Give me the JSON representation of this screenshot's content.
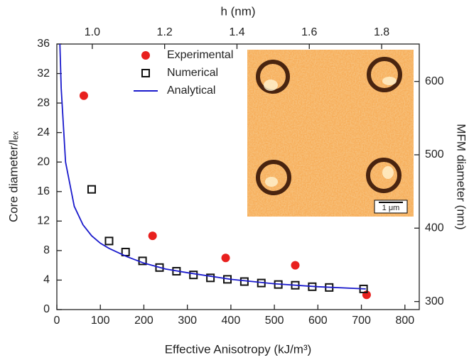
{
  "chart_data": {
    "type": "scatter",
    "xlabel": "Effective Anisotropy (kJ/m³)",
    "ylabel": "Core diameter/lₑₓ",
    "x2label": "h (nm)",
    "y2label": "MFM diameter (nm)",
    "xlim": [
      0,
      833
    ],
    "xticks": [
      0,
      100,
      200,
      300,
      400,
      500,
      600,
      700,
      800
    ],
    "ylim": [
      0,
      36
    ],
    "yticks": [
      0,
      4,
      8,
      12,
      16,
      20,
      24,
      28,
      32,
      36
    ],
    "x2lim": [
      0.902,
      1.904
    ],
    "x2ticks": [
      {
        "value": 1.0,
        "label": "1.0"
      },
      {
        "value": 1.2,
        "label": "1.2"
      },
      {
        "value": 1.4,
        "label": "1.4"
      },
      {
        "value": 1.6,
        "label": "1.6"
      },
      {
        "value": 1.8,
        "label": "1.8"
      }
    ],
    "y2lim": [
      289,
      651
    ],
    "y2ticks": [
      300,
      400,
      500,
      600
    ],
    "inset_scale_bar": "1 μm",
    "series": [
      {
        "name": "Experimental",
        "kind": "scatter",
        "marker": "circle",
        "color": "#e8201e",
        "x": [
          62,
          220,
          388,
          548,
          712
        ],
        "values": [
          29,
          10,
          7,
          6,
          2
        ]
      },
      {
        "name": "Numerical",
        "kind": "scatter",
        "marker": "square",
        "color": "#111111",
        "x": [
          80,
          120,
          158,
          197,
          236,
          275,
          314,
          353,
          392,
          431,
          470,
          509,
          548,
          587,
          626,
          705
        ],
        "values": [
          16.3,
          9.3,
          7.8,
          6.6,
          5.7,
          5.2,
          4.7,
          4.3,
          4.1,
          3.8,
          3.6,
          3.4,
          3.3,
          3.1,
          3.0,
          2.8
        ]
      },
      {
        "name": "Analytical",
        "kind": "line",
        "color": "#1a1acc",
        "x": [
          7,
          10,
          20,
          40,
          60,
          80,
          100,
          120,
          160,
          200,
          250,
          300,
          400,
          500,
          600,
          710
        ],
        "values": [
          36,
          30,
          20,
          14,
          11.5,
          10,
          9,
          8.3,
          7.2,
          6.3,
          5.5,
          5.0,
          4.1,
          3.5,
          3.1,
          2.8
        ]
      }
    ]
  }
}
